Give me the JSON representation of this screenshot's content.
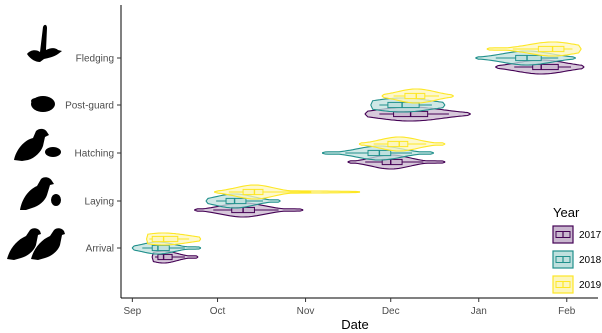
{
  "chart_data": {
    "type": "violin",
    "xlabel": "Date",
    "ylabel": "",
    "x_ticks": [
      "Sep",
      "Oct",
      "Nov",
      "Dec",
      "Jan",
      "Feb"
    ],
    "x_range": [
      "2017-08-28",
      "2018-02-12"
    ],
    "categories": [
      "Arrival",
      "Laying",
      "Hatching",
      "Post-guard",
      "Fledging"
    ],
    "legend": {
      "title": "Year",
      "position": "right"
    },
    "grid": false,
    "series": [
      {
        "name": "2017",
        "color": "#440154",
        "fill": "#c9b7cf",
        "stats": [
          {
            "stage": "Arrival",
            "min": "2017-09-08",
            "q1": "2017-09-10",
            "median": "2017-09-12",
            "q3": "2017-09-15",
            "max": "2017-09-24"
          },
          {
            "stage": "Laying",
            "min": "2017-09-23",
            "q1": "2017-10-06",
            "median": "2017-10-10",
            "q3": "2017-10-14",
            "max": "2017-10-31"
          },
          {
            "stage": "Hatching",
            "min": "2017-11-16",
            "q1": "2017-11-28",
            "median": "2017-12-01",
            "q3": "2017-12-05",
            "max": "2017-12-20"
          },
          {
            "stage": "Post-guard",
            "min": "2017-11-22",
            "q1": "2017-12-02",
            "median": "2017-12-08",
            "q3": "2017-12-14",
            "max": "2017-12-29"
          },
          {
            "stage": "Fledging",
            "min": "2018-01-07",
            "q1": "2018-01-20",
            "median": "2018-01-23",
            "q3": "2018-01-29",
            "max": "2018-02-07"
          }
        ]
      },
      {
        "name": "2018",
        "color": "#21908c",
        "fill": "#bfe0de",
        "stats": [
          {
            "stage": "Arrival",
            "min": "2017-09-01",
            "q1": "2017-09-08",
            "median": "2017-09-10",
            "q3": "2017-09-14",
            "max": "2017-09-25"
          },
          {
            "stage": "Laying",
            "min": "2017-09-27",
            "q1": "2017-10-04",
            "median": "2017-10-07",
            "q3": "2017-10-11",
            "max": "2017-10-23"
          },
          {
            "stage": "Hatching",
            "min": "2017-11-07",
            "q1": "2017-11-23",
            "median": "2017-11-27",
            "q3": "2017-12-01",
            "max": "2017-12-16"
          },
          {
            "stage": "Post-guard",
            "min": "2017-11-24",
            "q1": "2017-11-30",
            "median": "2017-12-05",
            "q3": "2017-12-11",
            "max": "2017-12-20"
          },
          {
            "stage": "Fledging",
            "min": "2017-12-31",
            "q1": "2018-01-14",
            "median": "2018-01-18",
            "q3": "2018-01-23",
            "max": "2018-02-04"
          }
        ]
      },
      {
        "name": "2019",
        "color": "#fde725",
        "fill": "#fcf6bd",
        "stats": [
          {
            "stage": "Arrival",
            "min": "2017-09-06",
            "q1": "2017-09-08",
            "median": "2017-09-12",
            "q3": "2017-09-17",
            "max": "2017-09-25"
          },
          {
            "stage": "Laying",
            "min": "2017-09-30",
            "q1": "2017-10-10",
            "median": "2017-10-14",
            "q3": "2017-10-17",
            "max": "2017-11-20"
          },
          {
            "stage": "Hatching",
            "min": "2017-11-20",
            "q1": "2017-11-30",
            "median": "2017-12-04",
            "q3": "2017-12-07",
            "max": "2017-12-20"
          },
          {
            "stage": "Post-guard",
            "min": "2017-11-28",
            "q1": "2017-12-06",
            "median": "2017-12-10",
            "q3": "2017-12-13",
            "max": "2017-12-23"
          },
          {
            "stage": "Fledging",
            "min": "2018-01-04",
            "q1": "2018-01-22",
            "median": "2018-01-27",
            "q3": "2018-01-31",
            "max": "2018-02-06"
          }
        ]
      }
    ]
  },
  "icons": {
    "Fledging": "flying-bird-icon",
    "Post-guard": "guarded-egg-icon",
    "Hatching": "bird-with-chick-icon",
    "Laying": "bird-with-egg-icon",
    "Arrival": "bird-pair-icon"
  }
}
